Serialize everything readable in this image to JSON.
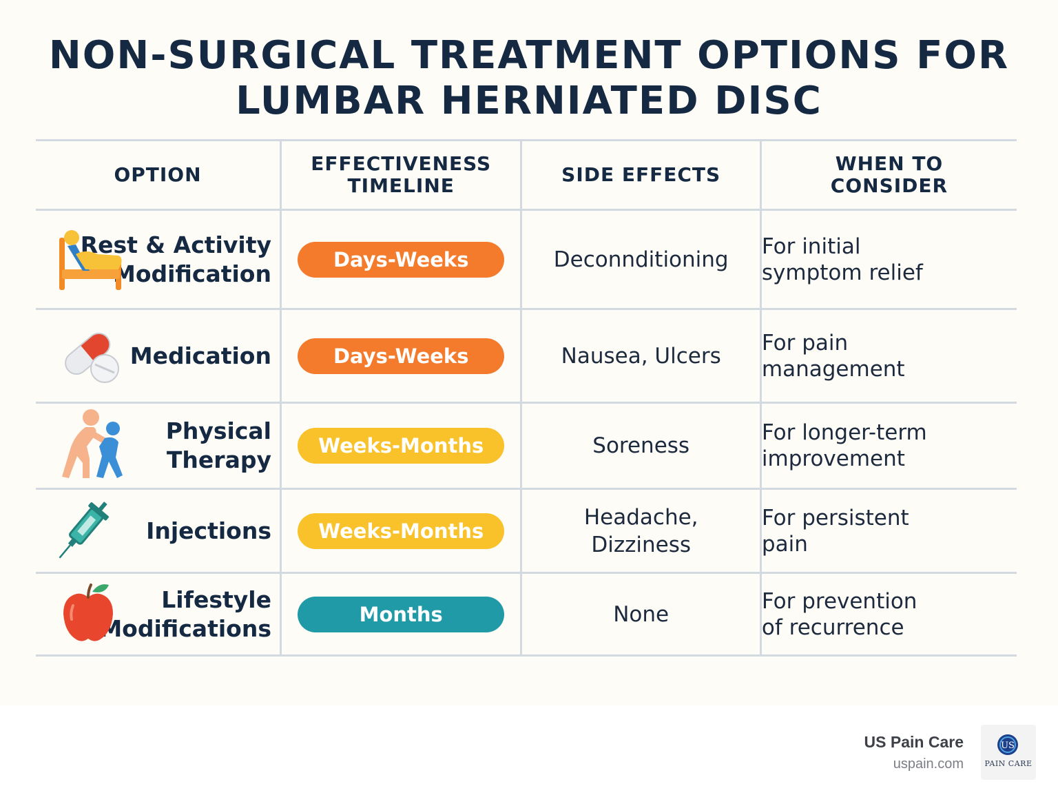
{
  "title_lines": [
    "NON-SURGICAL TREATMENT OPTIONS FOR",
    "LUMBAR HERNIATED DISC"
  ],
  "headers": {
    "option": "OPTION",
    "timeline": [
      "EFFECTIVENESS",
      "TIMELINE"
    ],
    "side_effects": "SIDE EFFECTS",
    "when": [
      "WHEN TO",
      "CONSIDER"
    ]
  },
  "rows": [
    {
      "icon": "bed-rest-icon",
      "option": [
        "Rest & Activity",
        "Modification"
      ],
      "timeline": "Days-Weeks",
      "timeline_color": "#f47a2c",
      "side_effects": [
        "Deconnditioning"
      ],
      "when": [
        "For initial",
        "symptom relief"
      ]
    },
    {
      "icon": "pill-icon",
      "option": [
        "Medication"
      ],
      "timeline": "Days-Weeks",
      "timeline_color": "#f47a2c",
      "side_effects": [
        "Nausea, Ulcers"
      ],
      "when": [
        "For pain",
        "management"
      ]
    },
    {
      "icon": "physical-therapy-icon",
      "option": [
        "Physical",
        "Therapy"
      ],
      "timeline": "Weeks-Months",
      "timeline_color": "#f9c22a",
      "side_effects": [
        "Soreness"
      ],
      "when": [
        "For longer-term",
        "improvement"
      ]
    },
    {
      "icon": "syringe-icon",
      "option": [
        "Injections"
      ],
      "timeline": "Weeks-Months",
      "timeline_color": "#f9c22a",
      "side_effects": [
        "Headache,",
        "Dizziness"
      ],
      "when": [
        "For persistent",
        "pain"
      ]
    },
    {
      "icon": "apple-icon",
      "option": [
        "Lifestyle",
        "Modifications"
      ],
      "timeline": "Months",
      "timeline_color": "#1f9aa6",
      "side_effects": [
        "None"
      ],
      "when": [
        "For prevention",
        "of recurrence"
      ]
    }
  ],
  "footer": {
    "brand": "US Pain Care",
    "url": "uspain.com",
    "logo_text": "PAIN CARE",
    "logo_mark": "US"
  },
  "colors": {
    "title": "#152a42",
    "grid": "#d3d9e0",
    "orange": "#f47a2c",
    "yellow": "#f9c22a",
    "teal": "#1f9aa6"
  }
}
